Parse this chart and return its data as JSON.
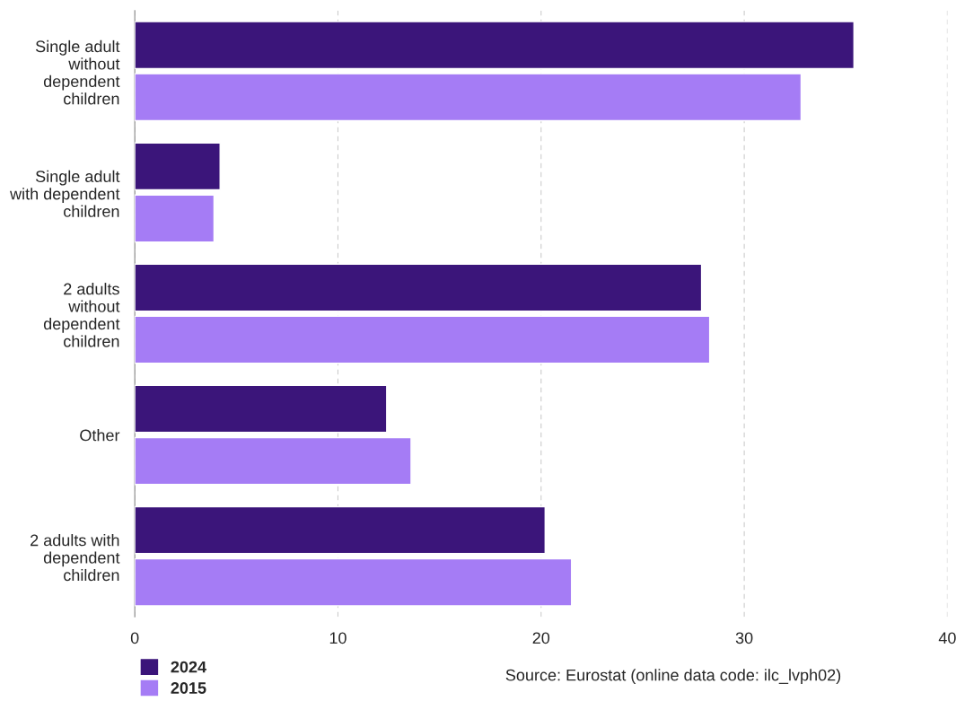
{
  "chart_data": {
    "type": "bar",
    "orientation": "horizontal",
    "categories": [
      "Single adult\nwithout\ndependent\nchildren",
      "Single adult\nwith dependent\nchildren",
      "2 adults\nwithout\ndependent\nchildren",
      "Other",
      "2 adults with\ndependent\nchildren"
    ],
    "series": [
      {
        "name": "2024",
        "color": "#3b157a",
        "values": [
          35.4,
          4.2,
          27.9,
          12.4,
          20.2
        ]
      },
      {
        "name": "2015",
        "color": "#a57cf5",
        "values": [
          32.8,
          3.9,
          28.3,
          13.6,
          21.5
        ]
      }
    ],
    "xlim": [
      0,
      40
    ],
    "xticks": [
      0,
      10,
      20,
      30,
      40
    ],
    "grid": "x",
    "legend": "bottom left",
    "annotations": [
      "Source: Eurostat (online data code: ilc_lvph02)"
    ]
  }
}
